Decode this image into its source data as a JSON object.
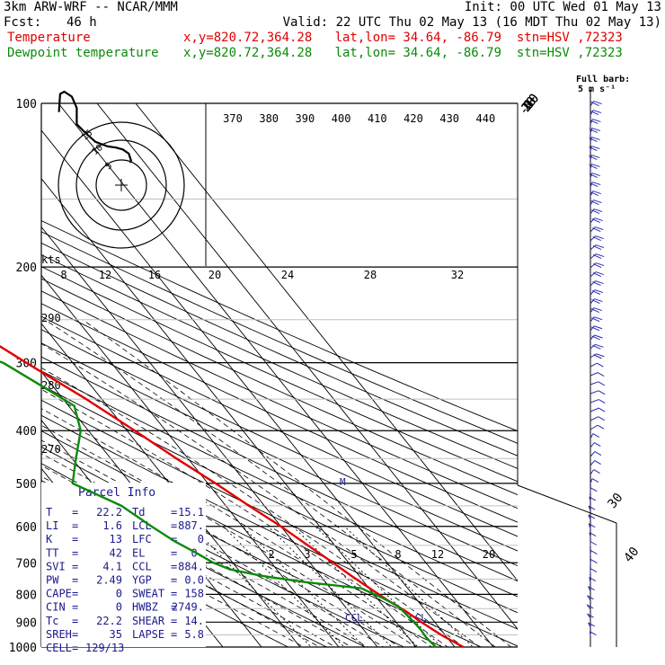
{
  "header": {
    "model": "3km ARW-WRF -- NCAR/MMM",
    "init": "Init: 00 UTC Wed 01 May 13",
    "fcst_label": "Fcst:",
    "fcst_value": "46 h",
    "valid": "Valid: 22 UTC Thu 02 May 13 (16 MDT Thu 02 May 13)"
  },
  "legend": [
    {
      "name": "Temperature",
      "location": "x,y=820.72,364.28   lat,lon= 34.64, -86.79  stn=HSV ,72323",
      "color": "#e00000"
    },
    {
      "name": "Dewpoint temperature",
      "location": "x,y=820.72,364.28   lat,lon= 34.64, -86.79  stn=HSV ,72323",
      "color": "#0b8a0b"
    }
  ],
  "barb_key": {
    "line1": "Full barb:",
    "line2": "5 m s⁻¹"
  },
  "parcel_info": {
    "title": "Parcel Info",
    "rows": [
      [
        "T",
        "22.2",
        "Td",
        "15.1"
      ],
      [
        "LI",
        "1.6",
        "LCL",
        "887."
      ],
      [
        "K",
        "13",
        "LFC",
        "0"
      ],
      [
        "TT",
        "42",
        "EL",
        "0."
      ],
      [
        "SVI",
        "4.1",
        "CCL",
        "884."
      ],
      [
        "PW",
        "2.49",
        "YGP",
        "0.0"
      ],
      [
        "CAPE",
        "0",
        "SWEAT",
        "158"
      ],
      [
        "CIN",
        "0",
        "HWBZ",
        "2749."
      ],
      [
        "Tc",
        "22.2",
        "SHEAR",
        "14."
      ],
      [
        "SREH",
        "35",
        "LAPSE",
        "5.8"
      ]
    ],
    "cell_label": "CELL",
    "cell_value": "129/13"
  },
  "hodograph": {
    "rings": [
      "5",
      "10",
      "15"
    ],
    "units": "kts"
  },
  "level_labels": {
    "lcl": "LCL",
    "ccl": "CCL"
  },
  "chart_data": {
    "type": "skew-t log-p",
    "pressure_levels": [
      100,
      200,
      300,
      400,
      500,
      600,
      700,
      800,
      900,
      1000
    ],
    "isotherm_labels": [
      -80,
      -70,
      -60,
      -50,
      -40,
      -30,
      -20,
      -10,
      0,
      10,
      20,
      30,
      40
    ],
    "theta_labels": [
      370,
      380,
      390,
      400,
      410,
      420,
      430,
      440
    ],
    "theta_left_labels": [
      290,
      280,
      270
    ],
    "mixing_ratio_labels": [
      2,
      3,
      5,
      8,
      12,
      20
    ],
    "wind_speed_scale": [
      8,
      12,
      16,
      20,
      24,
      28,
      32
    ],
    "temperature_profile": {
      "pressure": [
        1000,
        950,
        900,
        860,
        820,
        780,
        740,
        700,
        650,
        600,
        550,
        500,
        450,
        400,
        350,
        300,
        250,
        200,
        180,
        160,
        140,
        120,
        100
      ],
      "temp": [
        22.2,
        19,
        16.5,
        14.8,
        12.3,
        10.2,
        8,
        6,
        3,
        0,
        -4,
        -8,
        -13,
        -18,
        -24,
        -32,
        -41,
        -50,
        -54,
        -57,
        -59,
        -60,
        -61
      ]
    },
    "dewpoint_profile": {
      "pressure": [
        1000,
        960,
        930,
        900,
        870,
        840,
        810,
        780,
        760,
        740,
        720,
        700,
        670,
        640,
        600,
        550,
        500,
        450,
        400,
        360,
        330,
        300,
        280,
        260,
        240,
        220,
        200,
        180,
        160,
        140,
        120,
        100
      ],
      "dewpoint": [
        15.1,
        14.6,
        14.8,
        14.6,
        14.2,
        13.8,
        11.2,
        8,
        -5,
        -15,
        -22,
        -25,
        -27.5,
        -30.5,
        -33.5,
        -37,
        -45,
        -39,
        -32,
        -28.5,
        -33,
        -38,
        -47,
        -50,
        -56,
        -60,
        -66,
        -67,
        -68,
        -70,
        -72,
        -72
      ]
    },
    "hodograph_trace": [
      [
        0,
        0
      ],
      [
        0.2,
        0.6
      ],
      [
        -0.4,
        2.4
      ],
      [
        -2.0,
        3.5
      ],
      [
        -3.8,
        4.0
      ],
      [
        -6.0,
        4.3
      ],
      [
        -9.2,
        5.5
      ],
      [
        -11.5,
        7.5
      ],
      [
        -14.2,
        10.2
      ],
      [
        -14.2,
        14.5
      ],
      [
        -15.5,
        17.5
      ],
      [
        -17.5,
        18.8
      ],
      [
        -18.6,
        18.2
      ],
      [
        -18.9,
        13.4
      ]
    ]
  }
}
